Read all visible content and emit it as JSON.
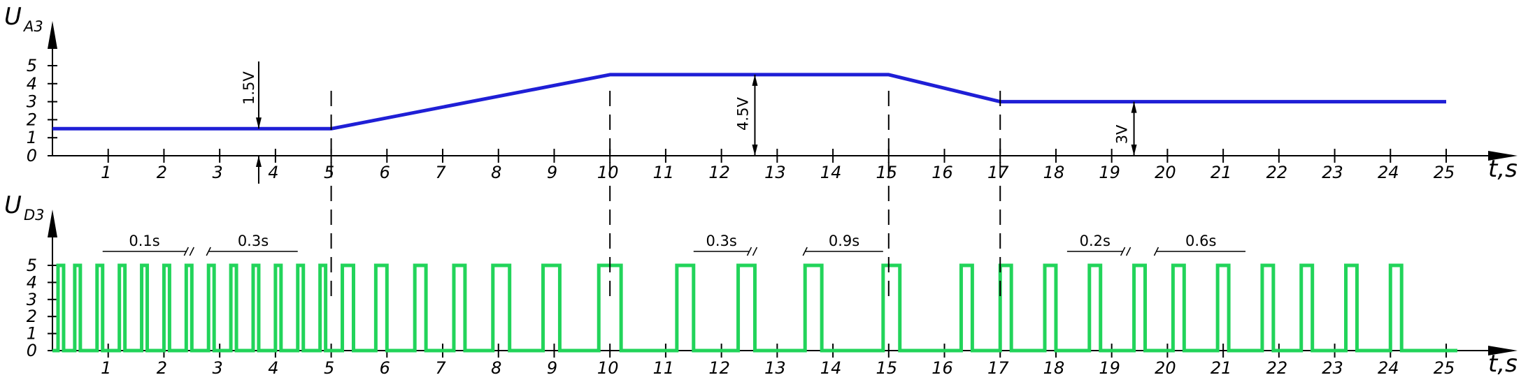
{
  "chart_data": [
    {
      "type": "line",
      "ylabel": "U",
      "ylabel_sub": "A3",
      "xlabel": "t,s",
      "xlim": [
        0,
        25
      ],
      "ylim": [
        0,
        5
      ],
      "xticks": [
        "1",
        "2",
        "3",
        "4",
        "5",
        "6",
        "7",
        "8",
        "9",
        "10",
        "11",
        "12",
        "13",
        "14",
        "15",
        "16",
        "17",
        "18",
        "19",
        "20",
        "21",
        "22",
        "23",
        "24",
        "25"
      ],
      "yticks": [
        "0",
        "1",
        "2",
        "3",
        "4",
        "5"
      ],
      "color": "#1f1fd6",
      "x": [
        0,
        5,
        10,
        15,
        17,
        25
      ],
      "y": [
        1.5,
        1.5,
        4.5,
        4.5,
        3,
        3
      ],
      "annotations": [
        {
          "text": "1.5V",
          "x": 3.7,
          "value": 1.5
        },
        {
          "text": "4.5V",
          "x": 12.6,
          "value": 4.5
        },
        {
          "text": "3V",
          "x": 19.4,
          "value": 3
        }
      ],
      "dashed_markers": [
        5,
        10,
        15,
        17
      ]
    },
    {
      "type": "line",
      "ylabel": "U",
      "ylabel_sub": "D3",
      "xlabel": "t,s",
      "xlim": [
        0,
        25
      ],
      "ylim": [
        0,
        5
      ],
      "xticks": [
        "1",
        "2",
        "3",
        "4",
        "5",
        "6",
        "7",
        "8",
        "9",
        "10",
        "11",
        "12",
        "13",
        "14",
        "15",
        "16",
        "17",
        "18",
        "19",
        "20",
        "21",
        "22",
        "23",
        "24",
        "25"
      ],
      "yticks": [
        "0",
        "1",
        "2",
        "3",
        "4",
        "5"
      ],
      "color": "#22d45a",
      "pulse_high": 5,
      "pulses": [
        [
          0.1,
          0.2
        ],
        [
          0.4,
          0.5
        ],
        [
          0.8,
          0.9
        ],
        [
          1.2,
          1.3
        ],
        [
          1.6,
          1.7
        ],
        [
          2.0,
          2.1
        ],
        [
          2.4,
          2.5
        ],
        [
          2.8,
          2.9
        ],
        [
          3.2,
          3.3
        ],
        [
          3.6,
          3.7
        ],
        [
          4.0,
          4.1
        ],
        [
          4.4,
          4.5
        ],
        [
          4.8,
          4.9
        ],
        [
          5.2,
          5.4
        ],
        [
          5.8,
          6.0
        ],
        [
          6.5,
          6.7
        ],
        [
          7.2,
          7.4
        ],
        [
          7.9,
          8.2
        ],
        [
          8.8,
          9.1
        ],
        [
          9.8,
          10.2
        ],
        [
          11.2,
          11.5
        ],
        [
          12.3,
          12.6
        ],
        [
          13.5,
          13.8
        ],
        [
          14.9,
          15.2
        ],
        [
          16.3,
          16.5
        ],
        [
          17.0,
          17.2
        ],
        [
          17.8,
          18.0
        ],
        [
          18.6,
          18.8
        ],
        [
          19.4,
          19.6
        ],
        [
          20.1,
          20.3
        ],
        [
          20.9,
          21.1
        ],
        [
          21.7,
          21.9
        ],
        [
          22.4,
          22.6
        ],
        [
          23.2,
          23.4
        ],
        [
          24.0,
          24.2
        ]
      ],
      "annotations": [
        {
          "text": "0.1s",
          "x": 1.3
        },
        {
          "text": "0.3s",
          "x": 3.6
        },
        {
          "text": "0.3s",
          "x": 12.0
        },
        {
          "text": "0.9s",
          "x": 14.3
        },
        {
          "text": "0.2s",
          "x": 18.8
        },
        {
          "text": "0.6s",
          "x": 20.7
        }
      ],
      "dashed_markers": [
        5,
        10,
        15,
        17
      ]
    }
  ]
}
